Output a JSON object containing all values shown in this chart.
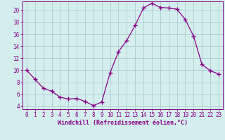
{
  "x": [
    0,
    1,
    2,
    3,
    4,
    5,
    6,
    7,
    8,
    9,
    10,
    11,
    12,
    13,
    14,
    15,
    16,
    17,
    18,
    19,
    20,
    21,
    22,
    23
  ],
  "y": [
    10,
    8.5,
    7,
    6.5,
    5.5,
    5.2,
    5.3,
    4.8,
    4.1,
    4.7,
    9.6,
    13.1,
    15.0,
    17.5,
    20.4,
    21.2,
    20.5,
    20.4,
    20.2,
    18.5,
    15.7,
    11.0,
    9.9,
    9.4
  ],
  "line_color": "#880088",
  "marker": "+",
  "marker_size": 4,
  "bg_color": "#d4eeee",
  "grid_color": "#aacccc",
  "axis_color": "#880088",
  "xlabel": "Windchill (Refroidissement éolien,°C)",
  "xlim": [
    -0.5,
    23.5
  ],
  "ylim": [
    3.5,
    21.5
  ],
  "yticks": [
    4,
    6,
    8,
    10,
    12,
    14,
    16,
    18,
    20
  ],
  "xticks": [
    0,
    1,
    2,
    3,
    4,
    5,
    6,
    7,
    8,
    9,
    10,
    11,
    12,
    13,
    14,
    15,
    16,
    17,
    18,
    19,
    20,
    21,
    22,
    23
  ],
  "font_color": "#880088",
  "xlabel_fontsize": 6.0,
  "tick_fontsize": 5.5
}
